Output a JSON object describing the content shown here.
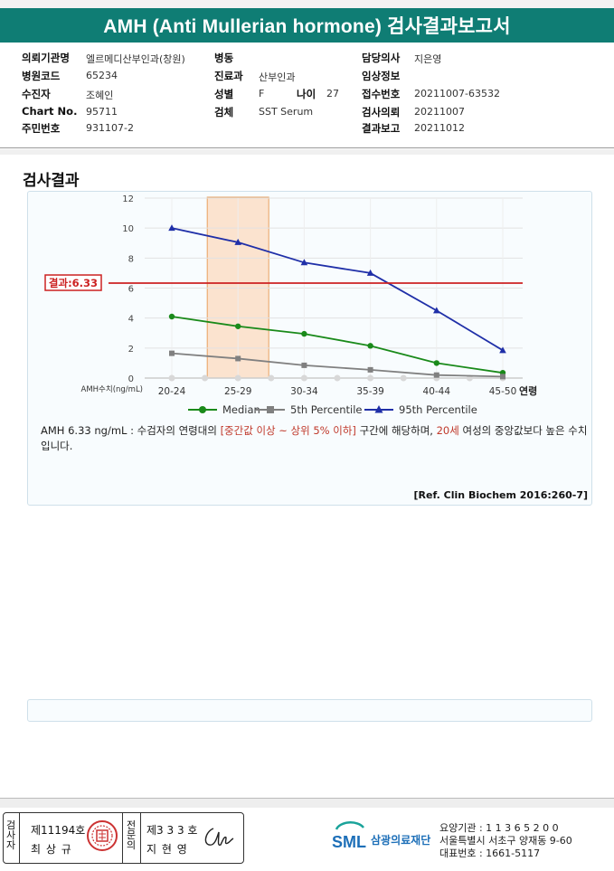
{
  "header": {
    "title": "AMH (Anti Mullerian hormone) 검사결과보고서"
  },
  "patient_info": {
    "rows": [
      {
        "label": "의뢰기관명",
        "value": "엘르메디산부인과(창원)"
      },
      {
        "label": "병원코드",
        "value": "65234"
      },
      {
        "label": "수진자",
        "value": "조혜인"
      },
      {
        "label": "Chart No.",
        "value": "95711"
      },
      {
        "label": "주민번호",
        "value": "931107-2"
      }
    ],
    "mid": {
      "ward_label": "병동",
      "ward_value": "",
      "dept_label": "진료과",
      "dept_value": "산부인과",
      "sex_label": "성별",
      "sex_value": "F",
      "age_label": "나이",
      "age_value": "27",
      "specimen_label": "검체",
      "specimen_value": "SST Serum"
    },
    "right": [
      {
        "label": "담당의사",
        "value": "지은영"
      },
      {
        "label": "임상정보",
        "value": ""
      },
      {
        "label": "접수번호",
        "value": "20211007-63532"
      },
      {
        "label": "검사의뢰",
        "value": "20211007"
      },
      {
        "label": "결과보고",
        "value": "20211012"
      }
    ]
  },
  "result_section": {
    "title": "검사결과",
    "description_parts": {
      "p1": "AMH  6.33 ng/mL : 수검자의 연령대의 ",
      "p2": "[중간값 이상 ~ 상위 5% 이하]",
      "p3": "  구간에 해당하며, ",
      "p4": "20세",
      "p5": " 여성의 중앙값보다 높은 수치입니다."
    },
    "reference": "[Ref. Clin Biochem 2016:260-7]"
  },
  "chart_data": {
    "type": "line",
    "categories": [
      "20-24",
      "25-29",
      "30-34",
      "35-39",
      "40-44",
      "45-50"
    ],
    "xlabel": "연령",
    "ylabel": "AMH수치(ng/mL)",
    "ylim": [
      0,
      12
    ],
    "yticks": [
      0,
      2,
      4,
      6,
      8,
      10,
      12
    ],
    "grid": true,
    "legend_position": "bottom",
    "highlight_category": "25-29",
    "result_line": {
      "label": "결과:6.33",
      "value": 6.33,
      "color": "#cc2222"
    },
    "series": [
      {
        "name": "Median",
        "color": "#1a8a1a",
        "marker": "circle",
        "values": [
          4.1,
          3.45,
          2.95,
          2.15,
          1.0,
          0.35
        ]
      },
      {
        "name": "5th Percentile",
        "color": "#808080",
        "marker": "square",
        "values": [
          1.65,
          1.3,
          0.85,
          0.55,
          0.2,
          0.1
        ]
      },
      {
        "name": "95th Percentile",
        "color": "#1f2fa8",
        "marker": "triangle",
        "values": [
          10.0,
          9.05,
          7.7,
          7.0,
          4.5,
          1.85
        ]
      }
    ]
  },
  "signature": {
    "examiner_label": "검사자",
    "examiner_no": "제11194호",
    "examiner_name": "최 상 규",
    "doctor_label": "전문의",
    "doctor_no": "제3 3 3 호",
    "doctor_name": "지 현 영"
  },
  "organization": {
    "logo_text": "SML",
    "name": "삼광의료재단",
    "code_line": "요양기관 : 1 1 3 6 5 2 0 0",
    "address_line": "서울특별시 서초구 양재동 9-60",
    "phone_line": "대표번호 : 1661-5117"
  }
}
